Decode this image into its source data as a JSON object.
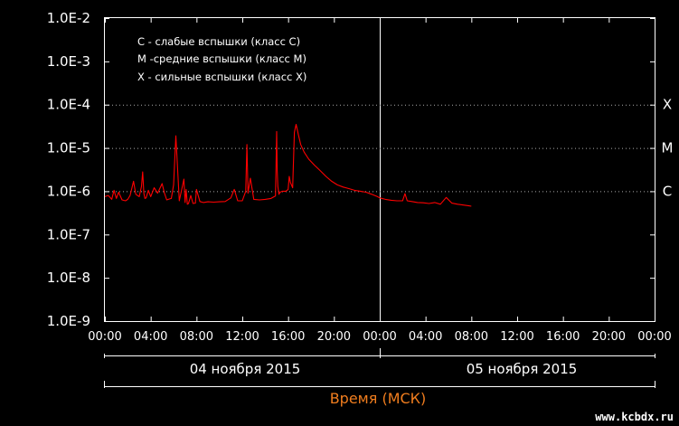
{
  "chart_data": {
    "type": "line",
    "y_scale": "log",
    "ylim": [
      1e-09,
      0.01
    ],
    "y_ticks": [
      "1.0E-2",
      "1.0E-3",
      "1.0E-4",
      "1.0E-5",
      "1.0E-6",
      "1.0E-7",
      "1.0E-8",
      "1.0E-9"
    ],
    "x_range_hours": [
      0,
      48
    ],
    "x_ticks": [
      "00:00",
      "04:00",
      "08:00",
      "12:00",
      "16:00",
      "20:00",
      "00:00",
      "04:00",
      "08:00",
      "12:00",
      "16:00",
      "20:00",
      "00:00"
    ],
    "day_labels": [
      "04 ноября 2015",
      "05 ноября 2015"
    ],
    "xlabel": "Время (МСК)",
    "legend": [
      "С - слабые вспышки (класс С)",
      "М -средние вспышки (класс М)",
      "Х - сильные вспышки (класс Х)"
    ],
    "class_levels": [
      {
        "label": "X",
        "value": 0.0001
      },
      {
        "label": "M",
        "value": 1e-05
      },
      {
        "label": "C",
        "value": 1e-06
      }
    ],
    "series": [
      {
        "color": "#ff0000",
        "x": [
          0,
          0.3,
          0.6,
          0.8,
          1.0,
          1.2,
          1.5,
          1.8,
          2.0,
          2.2,
          2.5,
          2.7,
          3.0,
          3.2,
          3.3,
          3.4,
          3.5,
          3.6,
          3.8,
          4.0,
          4.3,
          4.6,
          5.0,
          5.2,
          5.4,
          5.6,
          5.8,
          6.0,
          6.2,
          6.5,
          6.9,
          7.0,
          7.1,
          7.2,
          7.3,
          7.5,
          7.7,
          7.9,
          8.0,
          8.3,
          8.6,
          9.0,
          9.5,
          10.0,
          10.5,
          11.0,
          11.3,
          11.6,
          12.0,
          12.3,
          12.4,
          12.5,
          12.7,
          13.0,
          13.5,
          14.0,
          14.5,
          14.9,
          15.0,
          15.05,
          15.1,
          15.2,
          15.3,
          15.5,
          15.8,
          16.0,
          16.1,
          16.2,
          16.4,
          16.55,
          16.7,
          16.9,
          17.1,
          17.4,
          17.8,
          18.3,
          18.8,
          19.3,
          19.8,
          20.3,
          20.8,
          21.3,
          21.8,
          22.3,
          22.8,
          23.3,
          23.8,
          24.0,
          24.5,
          25.0,
          25.5,
          26.0,
          26.2,
          26.4,
          26.8,
          27.3,
          27.8,
          28.3,
          28.8,
          29.3,
          29.8,
          30.3,
          30.8,
          31.3,
          31.8,
          32.0
        ],
        "values": [
          7.5e-07,
          8e-07,
          6.5e-07,
          1.05e-06,
          6.8e-07,
          9.5e-07,
          6.3e-07,
          6e-07,
          6.5e-07,
          8e-07,
          1.7e-06,
          8.5e-07,
          7.5e-07,
          1.3e-06,
          2.8e-06,
          9e-07,
          6.8e-07,
          7e-07,
          1.05e-06,
          7.5e-07,
          1.2e-06,
          9e-07,
          1.5e-06,
          9e-07,
          6.3e-07,
          6.6e-07,
          6.8e-07,
          1.4e-06,
          1.9e-05,
          6e-07,
          1.9e-06,
          5.5e-07,
          1.1e-06,
          5e-07,
          5.2e-07,
          8e-07,
          5.2e-07,
          5.3e-07,
          1.1e-06,
          5.8e-07,
          5.5e-07,
          5.7e-07,
          5.6e-07,
          5.7e-07,
          5.8e-07,
          7e-07,
          1.1e-06,
          6e-07,
          6e-07,
          1e-06,
          1.2e-05,
          9e-07,
          2e-06,
          6.5e-07,
          6.3e-07,
          6.5e-07,
          6.8e-07,
          7.8e-07,
          2.4e-05,
          3e-06,
          1.3e-06,
          8.5e-07,
          9.5e-07,
          1e-06,
          1e-06,
          1.1e-06,
          2.2e-06,
          1.6e-06,
          1.2e-06,
          2.3e-05,
          3.5e-05,
          2e-05,
          1.2e-05,
          8e-06,
          5.5e-06,
          4e-06,
          3e-06,
          2.2e-06,
          1.7e-06,
          1.4e-06,
          1.25e-06,
          1.15e-06,
          1.05e-06,
          1e-06,
          9.5e-07,
          8.5e-07,
          7.5e-07,
          7e-07,
          6.5e-07,
          6.2e-07,
          6e-07,
          6e-07,
          8.8e-07,
          6e-07,
          5.8e-07,
          5.5e-07,
          5.4e-07,
          5.2e-07,
          5.5e-07,
          5e-07,
          7.2e-07,
          5.3e-07,
          5e-07,
          4.8e-07,
          4.6e-07,
          4.5e-07
        ]
      }
    ]
  },
  "watermark": "www.kcbdx.ru"
}
